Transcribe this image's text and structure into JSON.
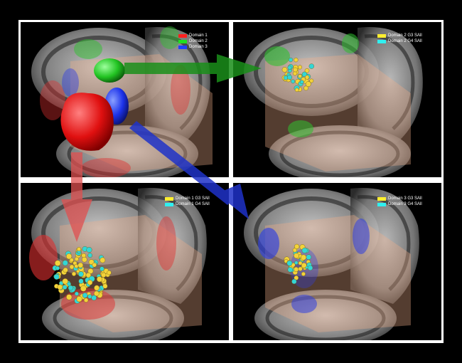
{
  "panels": {
    "top_left": {
      "legend": [
        {
          "label": "Domain 1",
          "color": "#ff2020"
        },
        {
          "label": "Domain 2",
          "color": "#20e020"
        },
        {
          "label": "Domain 3",
          "color": "#2040ff"
        }
      ]
    },
    "top_right": {
      "legend": [
        {
          "label": "Domain 2 G3 SAll",
          "color": "#ffee30"
        },
        {
          "label": "Domain 2 G4 SAll",
          "color": "#30f0f0"
        }
      ]
    },
    "bottom_left": {
      "legend": [
        {
          "label": "Domain 1 G3 SAll",
          "color": "#ffee30"
        },
        {
          "label": "Domain 1 G4 SAll",
          "color": "#30f0f0"
        }
      ]
    },
    "bottom_right": {
      "legend": [
        {
          "label": "Domain 3 G3 SAll",
          "color": "#ffee30"
        },
        {
          "label": "Domain 3 G4 SAll",
          "color": "#30f0f0"
        }
      ]
    }
  },
  "colors": {
    "domain1": "#ff2020",
    "domain2": "#20e020",
    "domain3": "#2040ff",
    "arrow_green": "#1a8f1a",
    "arrow_blue": "#1f32c8",
    "arrow_red": "#e05050",
    "frame": "#ffffff",
    "background": "#000000"
  }
}
